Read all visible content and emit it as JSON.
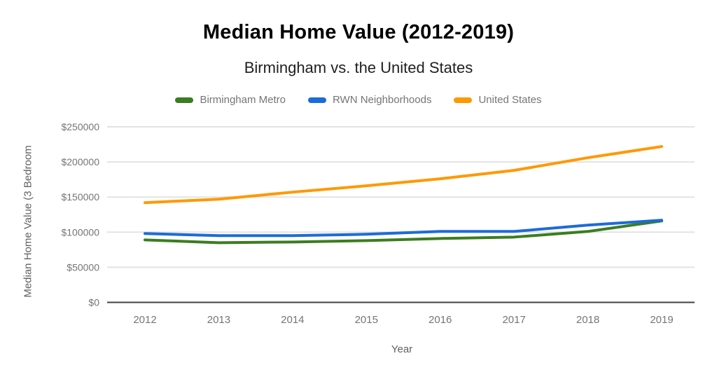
{
  "title": "Median Home Value (2012-2019)",
  "subtitle": "Birmingham vs. the United States",
  "legend": {
    "items": [
      {
        "label": "Birmingham Metro",
        "color": "#3b7d21"
      },
      {
        "label": "RWN Neighborhoods",
        "color": "#1d6bd8"
      },
      {
        "label": "United States",
        "color": "#ff9900"
      }
    ]
  },
  "axes": {
    "y_label": "Median Home Value (3 Bedroom",
    "x_label": "Year",
    "y_tick_labels": [
      "$0",
      "$50000",
      "$100000",
      "$150000",
      "$200000",
      "$250000"
    ],
    "x_tick_labels": [
      "2012",
      "2013",
      "2014",
      "2015",
      "2016",
      "2017",
      "2018",
      "2019"
    ]
  },
  "colors": {
    "grid": "#e3e3e3",
    "baseline": "#424242",
    "tick_text": "#757575",
    "axis_title_text": "#616161"
  },
  "chart_data": {
    "type": "line",
    "title": "Median Home Value (2012-2019)",
    "subtitle": "Birmingham vs. the United States",
    "xlabel": "Year",
    "ylabel": "Median Home Value (3 Bedroom",
    "x": [
      2012,
      2013,
      2014,
      2015,
      2016,
      2017,
      2018,
      2019
    ],
    "y_ticks": [
      0,
      50000,
      100000,
      150000,
      200000,
      250000
    ],
    "ylim": [
      0,
      250000
    ],
    "grid": true,
    "legend_position": "top",
    "series": [
      {
        "name": "Birmingham Metro",
        "color": "#3b7d21",
        "values": [
          89000,
          85000,
          86000,
          88000,
          91000,
          93000,
          101000,
          116000
        ]
      },
      {
        "name": "RWN Neighborhoods",
        "color": "#1d6bd8",
        "values": [
          98000,
          95000,
          95000,
          97000,
          101000,
          101000,
          110000,
          117000
        ]
      },
      {
        "name": "United States",
        "color": "#ff9900",
        "values": [
          142000,
          147000,
          157000,
          166000,
          176000,
          188000,
          206000,
          222000
        ]
      }
    ]
  }
}
